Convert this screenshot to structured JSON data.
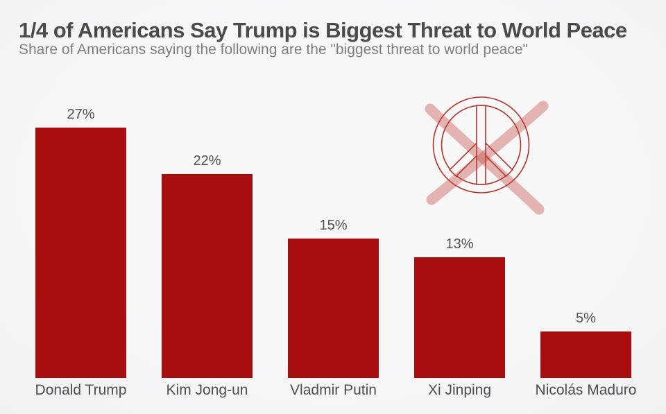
{
  "chart_data": {
    "type": "bar",
    "title": "1/4 of Americans Say Trump is Biggest Threat to World Peace",
    "subtitle": "Share of Americans saying the following are the \"biggest threat to world peace\"",
    "categories": [
      "Donald Trump",
      "Kim Jong-un",
      "Vladmir Putin",
      "Xi Jinping",
      "Nicolás Maduro"
    ],
    "values": [
      27,
      22,
      15,
      13,
      5
    ],
    "value_labels": [
      "27%",
      "22%",
      "15%",
      "13%",
      "5%"
    ],
    "value_suffix": "%",
    "ylim": [
      0,
      30
    ],
    "grid": false,
    "legend": "none",
    "orientation": "vertical",
    "icon": "crossed-out-peace-icon",
    "colors": {
      "bar": "#a80d10",
      "background_center": "#f7f7f8",
      "background_edge": "#f1f1f2",
      "title": "#4a4a4a",
      "subtitle": "#7e7e7e",
      "value_label": "#4f4f4f",
      "category_label": "#4d4d4d",
      "peace_outline": "#b03228",
      "cross": "#c0453b"
    }
  }
}
